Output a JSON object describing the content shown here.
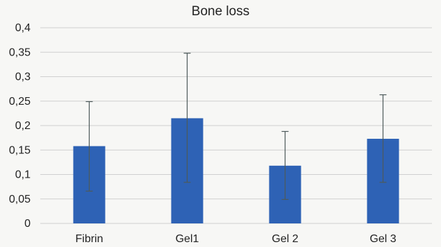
{
  "chart_data": {
    "type": "bar",
    "title": "Bone loss",
    "xlabel": "",
    "ylabel": "",
    "categories": [
      "Fibrin",
      "Gel1",
      "Gel 2",
      "Gel 3"
    ],
    "values": [
      0.158,
      0.215,
      0.118,
      0.173
    ],
    "error_low": [
      0.066,
      0.084,
      0.049,
      0.084
    ],
    "error_high": [
      0.249,
      0.348,
      0.188,
      0.263
    ],
    "ylim": [
      0,
      0.4
    ],
    "yticks": [
      0,
      0.05,
      0.1,
      0.15,
      0.2,
      0.25,
      0.3,
      0.35,
      0.4
    ],
    "ytick_labels": [
      "0",
      "0,05",
      "0,1",
      "0,15",
      "0,2",
      "0,25",
      "0,3",
      "0,35",
      "0,4"
    ],
    "grid": true,
    "legend": "none",
    "colors": {
      "bar": "#2e62b5",
      "grid": "#cfcfcf",
      "error": "#4d5a5a",
      "background": "#f7f7f5"
    }
  }
}
